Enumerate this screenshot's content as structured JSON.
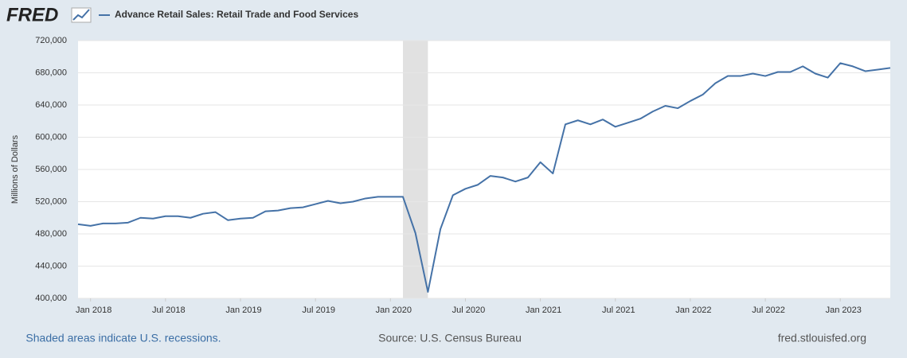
{
  "logo": "FRED",
  "chart_data": {
    "type": "line",
    "ylabel": "Millions of Dollars",
    "x": [
      "2017-12",
      "2018-01",
      "2018-02",
      "2018-03",
      "2018-04",
      "2018-05",
      "2018-06",
      "2018-07",
      "2018-08",
      "2018-09",
      "2018-10",
      "2018-11",
      "2018-12",
      "2019-01",
      "2019-02",
      "2019-03",
      "2019-04",
      "2019-05",
      "2019-06",
      "2019-07",
      "2019-08",
      "2019-09",
      "2019-10",
      "2019-11",
      "2019-12",
      "2020-01",
      "2020-02",
      "2020-03",
      "2020-04",
      "2020-05",
      "2020-06",
      "2020-07",
      "2020-08",
      "2020-09",
      "2020-10",
      "2020-11",
      "2020-12",
      "2021-01",
      "2021-02",
      "2021-03",
      "2021-04",
      "2021-05",
      "2021-06",
      "2021-07",
      "2021-08",
      "2021-09",
      "2021-10",
      "2021-11",
      "2021-12",
      "2022-01",
      "2022-02",
      "2022-03",
      "2022-04",
      "2022-05",
      "2022-06",
      "2022-07",
      "2022-08",
      "2022-09",
      "2022-10",
      "2022-11",
      "2022-12",
      "2023-01",
      "2023-02",
      "2023-03",
      "2023-04",
      "2023-05"
    ],
    "series": [
      {
        "name": "Advance Retail Sales: Retail Trade and Food Services",
        "color": "#4572a7",
        "values": [
          492000,
          490000,
          493000,
          493000,
          494000,
          500000,
          499000,
          502000,
          502000,
          500000,
          505000,
          507000,
          497000,
          499000,
          500000,
          508000,
          509000,
          512000,
          513000,
          517000,
          521000,
          518000,
          520000,
          524000,
          526000,
          526000,
          526000,
          481000,
          408000,
          486000,
          528000,
          536000,
          541000,
          552000,
          550000,
          545000,
          550000,
          569000,
          555000,
          616000,
          621000,
          616000,
          622000,
          613000,
          618000,
          623000,
          632000,
          639000,
          636000,
          645000,
          653000,
          667000,
          676000,
          676000,
          679000,
          676000,
          681000,
          681000,
          688000,
          679000,
          674000,
          692000,
          688000,
          682000,
          684000,
          686000
        ]
      }
    ],
    "xlim": [
      "2017-12",
      "2023-05"
    ],
    "xticks": [
      {
        "value": "2018-01",
        "label": "Jan 2018"
      },
      {
        "value": "2018-07",
        "label": "Jul 2018"
      },
      {
        "value": "2019-01",
        "label": "Jan 2019"
      },
      {
        "value": "2019-07",
        "label": "Jul 2019"
      },
      {
        "value": "2020-01",
        "label": "Jan 2020"
      },
      {
        "value": "2020-07",
        "label": "Jul 2020"
      },
      {
        "value": "2021-01",
        "label": "Jan 2021"
      },
      {
        "value": "2021-07",
        "label": "Jul 2021"
      },
      {
        "value": "2022-01",
        "label": "Jan 2022"
      },
      {
        "value": "2022-07",
        "label": "Jul 2022"
      },
      {
        "value": "2023-01",
        "label": "Jan 2023"
      }
    ],
    "ylim": [
      400000,
      720000
    ],
    "yticks": [
      {
        "value": 400000,
        "label": "400,000"
      },
      {
        "value": 440000,
        "label": "440,000"
      },
      {
        "value": 480000,
        "label": "480,000"
      },
      {
        "value": 520000,
        "label": "520,000"
      },
      {
        "value": 560000,
        "label": "560,000"
      },
      {
        "value": 600000,
        "label": "600,000"
      },
      {
        "value": 640000,
        "label": "640,000"
      },
      {
        "value": 680000,
        "label": "680,000"
      },
      {
        "value": 720000,
        "label": "720,000"
      }
    ],
    "grid": true,
    "recessions": [
      [
        "2020-02",
        "2020-04"
      ]
    ],
    "recession_color": "#e1e1e1",
    "footer_left": "Shaded areas indicate U.S. recessions.",
    "source": "Source: U.S. Census Bureau",
    "footer_right": "fred.stlouisfed.org"
  }
}
